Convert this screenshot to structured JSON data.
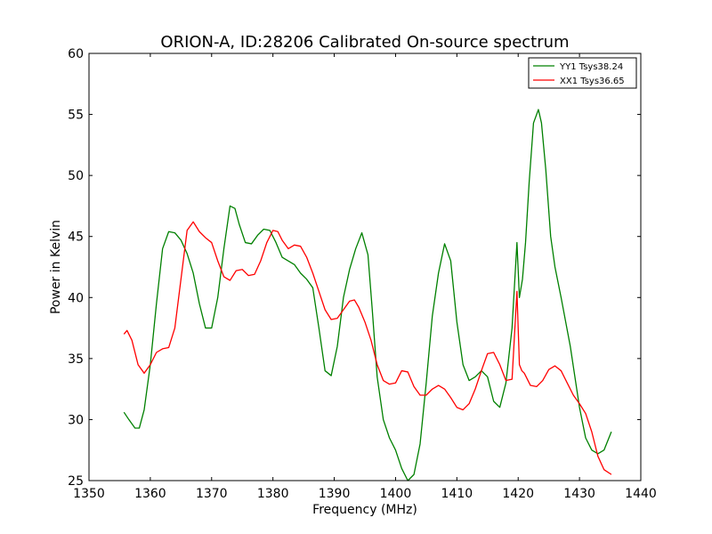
{
  "chart_data": {
    "type": "line",
    "title": "ORION-A, ID:28206 Calibrated On-source spectrum",
    "xlabel": "Frequency (MHz)",
    "ylabel": "Power in Kelvin",
    "xlim": [
      1350,
      1440
    ],
    "ylim": [
      25,
      60
    ],
    "xticks": [
      1350,
      1360,
      1370,
      1380,
      1390,
      1400,
      1410,
      1420,
      1430,
      1440
    ],
    "yticks": [
      25,
      30,
      35,
      40,
      45,
      50,
      55,
      60
    ],
    "grid": false,
    "legend_position": "top-right",
    "series": [
      {
        "name": "YY1 Tsys38.24",
        "color": "#008000",
        "x": [
          1355.7,
          1356.5,
          1357.5,
          1358.2,
          1359,
          1360,
          1361,
          1362,
          1363,
          1364,
          1365,
          1366,
          1367,
          1368,
          1369,
          1370,
          1371,
          1372,
          1373,
          1373.8,
          1374.5,
          1375.5,
          1376.5,
          1377.5,
          1378.5,
          1379.5,
          1380.5,
          1381.5,
          1382.5,
          1383.5,
          1384.5,
          1385.5,
          1386.5,
          1387.5,
          1388.5,
          1389.5,
          1390.5,
          1391.5,
          1392.5,
          1393.5,
          1394.5,
          1395.5,
          1396.2,
          1397,
          1398,
          1399,
          1400,
          1401,
          1402,
          1403,
          1404,
          1405,
          1406,
          1407,
          1408,
          1409,
          1410,
          1411,
          1412,
          1413,
          1414,
          1415,
          1416,
          1417,
          1418,
          1419,
          1419.8,
          1420.2,
          1420.7,
          1421.2,
          1421.8,
          1422.5,
          1423.3,
          1423.8,
          1424.5,
          1425.3,
          1426,
          1427,
          1428.5,
          1430,
          1431,
          1432,
          1433,
          1434,
          1435.2
        ],
        "values": [
          30.6,
          30.0,
          29.3,
          29.3,
          30.8,
          34.5,
          39.5,
          44.0,
          45.4,
          45.3,
          44.7,
          43.6,
          42.0,
          39.5,
          37.5,
          37.5,
          40.0,
          44.0,
          47.5,
          47.3,
          46.0,
          44.5,
          44.4,
          45.1,
          45.6,
          45.5,
          44.5,
          43.3,
          43.0,
          42.7,
          42.0,
          41.5,
          40.8,
          37.5,
          34.0,
          33.6,
          36.0,
          40.0,
          42.3,
          44.0,
          45.3,
          43.5,
          39.0,
          33.5,
          30.0,
          28.5,
          27.5,
          26.0,
          25.0,
          25.5,
          28.0,
          33.0,
          38.5,
          42.0,
          44.4,
          43.0,
          38.0,
          34.5,
          33.2,
          33.5,
          34.0,
          33.5,
          31.5,
          31.0,
          33.0,
          37.5,
          44.5,
          40.0,
          41.5,
          44.5,
          49.5,
          54.3,
          55.4,
          54.3,
          50.5,
          45.0,
          42.5,
          40.0,
          36.0,
          31.0,
          28.5,
          27.5,
          27.2,
          27.5,
          29.0
        ]
      },
      {
        "name": "XX1 Tsys36.65",
        "color": "#ff0000",
        "x": [
          1355.7,
          1356.2,
          1357,
          1358,
          1359,
          1360,
          1361,
          1362,
          1363,
          1364,
          1365,
          1366,
          1367,
          1368,
          1369,
          1370,
          1371,
          1372,
          1373,
          1374,
          1375,
          1376,
          1377,
          1378,
          1379,
          1380,
          1380.8,
          1381.5,
          1382.5,
          1383.5,
          1384.5,
          1385.5,
          1386.5,
          1387.5,
          1388.5,
          1389.5,
          1390.5,
          1391.5,
          1392.5,
          1393.3,
          1394,
          1395,
          1396,
          1397,
          1398,
          1399,
          1400,
          1401,
          1402,
          1403,
          1404,
          1405,
          1406,
          1407,
          1408,
          1409,
          1410,
          1411,
          1412,
          1413,
          1414,
          1415,
          1416,
          1417,
          1418,
          1419,
          1419.8,
          1420.2,
          1420.6,
          1421,
          1422,
          1423,
          1424,
          1425,
          1426,
          1427,
          1428,
          1429,
          1430,
          1431,
          1432,
          1433,
          1434,
          1435.2
        ],
        "values": [
          37.0,
          37.3,
          36.5,
          34.5,
          33.8,
          34.5,
          35.5,
          35.8,
          35.9,
          37.5,
          41.5,
          45.5,
          46.2,
          45.4,
          44.9,
          44.5,
          43.0,
          41.7,
          41.4,
          42.2,
          42.3,
          41.8,
          41.9,
          43.0,
          44.5,
          45.5,
          45.4,
          44.7,
          44.0,
          44.3,
          44.2,
          43.3,
          42.0,
          40.5,
          39.0,
          38.2,
          38.3,
          39.0,
          39.7,
          39.8,
          39.2,
          38.0,
          36.5,
          34.5,
          33.2,
          32.9,
          33.0,
          34.0,
          33.9,
          32.7,
          32.0,
          32.0,
          32.5,
          32.8,
          32.5,
          31.8,
          31.0,
          30.8,
          31.3,
          32.5,
          34.0,
          35.4,
          35.5,
          34.5,
          33.2,
          33.3,
          40.5,
          34.5,
          34.0,
          33.8,
          32.8,
          32.7,
          33.2,
          34.1,
          34.4,
          34.0,
          33.0,
          32.0,
          31.3,
          30.5,
          29.0,
          27.0,
          25.9,
          25.5
        ]
      }
    ]
  }
}
